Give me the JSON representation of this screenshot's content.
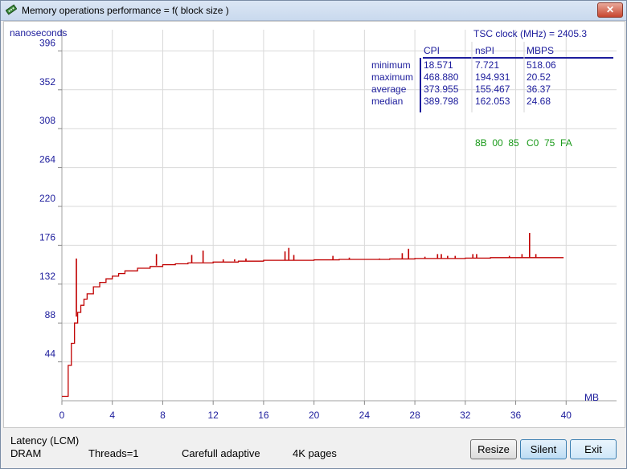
{
  "window": {
    "title": "Memory operations performance = f( block size )",
    "close_label": "✕"
  },
  "chart_data": {
    "type": "line",
    "ylabel": "nanoseconds",
    "xlabel": "MB",
    "xlim": [
      0,
      44
    ],
    "ylim": [
      0,
      420
    ],
    "x_ticks": [
      0,
      4,
      8,
      12,
      16,
      20,
      24,
      28,
      32,
      36,
      40
    ],
    "y_ticks": [
      44,
      88,
      132,
      176,
      220,
      264,
      308,
      352,
      396
    ],
    "series": [
      {
        "color": "#c00000",
        "x": [
          0,
          0.25,
          0.5,
          0.75,
          1.0,
          1.25,
          1.5,
          1.75,
          2.0,
          2.5,
          3.0,
          3.5,
          4.0,
          4.5,
          5.0,
          6.0,
          7.0,
          8.0,
          9.0,
          10.0,
          12.0,
          14.0,
          16.0,
          18.0,
          20.0,
          22.0,
          24.0,
          26.0,
          28.0,
          30.0,
          32.0,
          34.0,
          36.0,
          38.0,
          39.8
        ],
        "y": [
          5,
          5,
          40,
          65,
          88,
          100,
          108,
          115,
          121,
          129,
          134,
          138,
          141,
          144,
          147,
          150,
          152,
          154,
          155,
          156,
          157,
          158,
          159,
          159,
          159.5,
          160,
          160,
          160.5,
          161,
          161,
          161.5,
          162,
          162,
          162,
          162
        ]
      }
    ],
    "spikes": [
      {
        "x": 1.15,
        "y": 161
      },
      {
        "x": 6.5,
        "y": 151
      },
      {
        "x": 7.5,
        "y": 166
      },
      {
        "x": 10.3,
        "y": 165
      },
      {
        "x": 11.2,
        "y": 170
      },
      {
        "x": 12.8,
        "y": 160
      },
      {
        "x": 13.7,
        "y": 160
      },
      {
        "x": 14.6,
        "y": 161
      },
      {
        "x": 17.7,
        "y": 169
      },
      {
        "x": 18.0,
        "y": 173
      },
      {
        "x": 18.4,
        "y": 165
      },
      {
        "x": 21.5,
        "y": 164
      },
      {
        "x": 22.8,
        "y": 162
      },
      {
        "x": 25.2,
        "y": 161
      },
      {
        "x": 27.0,
        "y": 167
      },
      {
        "x": 27.5,
        "y": 172
      },
      {
        "x": 28.8,
        "y": 163
      },
      {
        "x": 29.8,
        "y": 166
      },
      {
        "x": 30.1,
        "y": 166
      },
      {
        "x": 30.6,
        "y": 164
      },
      {
        "x": 31.2,
        "y": 164
      },
      {
        "x": 32.6,
        "y": 166
      },
      {
        "x": 32.9,
        "y": 166
      },
      {
        "x": 35.5,
        "y": 164
      },
      {
        "x": 36.5,
        "y": 166
      },
      {
        "x": 37.1,
        "y": 190
      },
      {
        "x": 37.6,
        "y": 166
      }
    ]
  },
  "stats": {
    "tsc_label": "TSC clock (MHz)  = 2405.3",
    "headers": [
      "CPI",
      "nsPI",
      "MBPS"
    ],
    "rows": [
      {
        "label": "minimum",
        "cpi": "18.571",
        "nspi": "7.721",
        "mbps": "518.06"
      },
      {
        "label": "maximum",
        "cpi": "468.880",
        "nspi": "194.931",
        "mbps": "20.52"
      },
      {
        "label": "average",
        "cpi": "373.955",
        "nspi": "155.467",
        "mbps": "36.37"
      },
      {
        "label": "median",
        "cpi": "389.798",
        "nspi": "162.053",
        "mbps": "24.68"
      }
    ],
    "hex_left": "8B  00  85",
    "hex_right": "C0  75  FA"
  },
  "footer": {
    "latency": "Latency  (LCM)",
    "memory": "DRAM",
    "threads": "Threads=1",
    "mode": "Carefull adaptive",
    "pages": "4K pages"
  },
  "buttons": {
    "resize": "Resize",
    "silent": "Silent",
    "exit": "Exit"
  },
  "colors": {
    "axis_text": "#1c1c9c",
    "data_line": "#c00000",
    "hex_text": "#1a9a1a"
  }
}
